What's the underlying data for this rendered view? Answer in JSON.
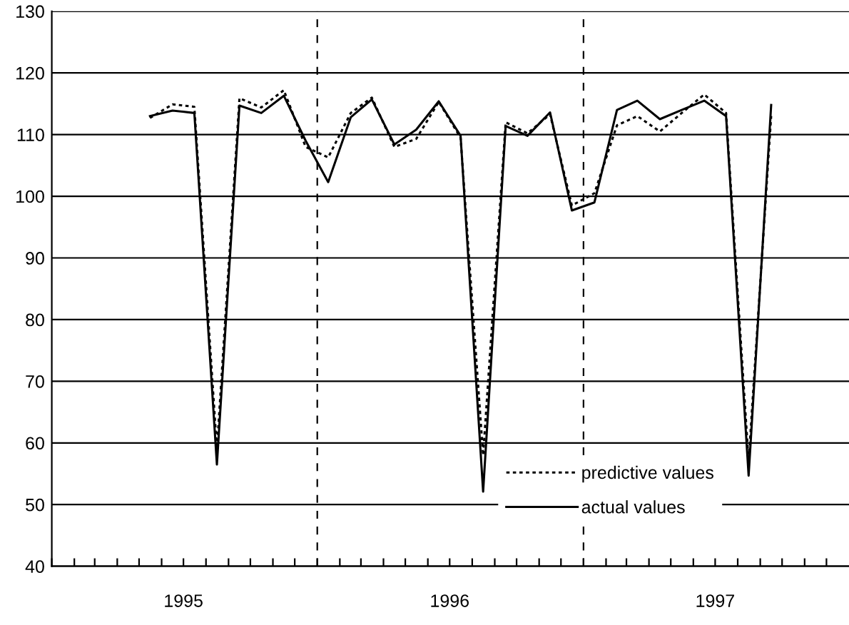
{
  "chart_data": {
    "type": "line",
    "x": [
      "1995-05-16",
      "1995-06-16",
      "1995-07-16",
      "1995-08-16",
      "1995-09-16",
      "1995-10-16",
      "1995-11-16",
      "1995-12-16",
      "1996-01-16",
      "1996-02-16",
      "1996-03-16",
      "1996-04-16",
      "1996-05-16",
      "1996-06-16",
      "1996-07-16",
      "1996-08-16",
      "1996-09-16",
      "1996-10-16",
      "1996-11-16",
      "1996-12-16",
      "1997-01-16",
      "1997-02-16",
      "1997-03-16",
      "1997-04-16",
      "1997-05-16",
      "1997-06-16",
      "1997-07-16",
      "1997-08-16",
      "1997-09-16"
    ],
    "series": [
      {
        "name": "predictive values",
        "color": "#000000",
        "line_style": "dotted",
        "values": [
          112.7,
          114.9,
          114.5,
          59,
          115.9,
          114.4,
          117.2,
          108,
          106.3,
          113.5,
          116,
          108,
          109.3,
          115.3,
          109.5,
          58,
          112,
          110.2,
          113.3,
          98.5,
          100.5,
          111.5,
          113,
          110.5,
          113.5,
          116.5,
          113.5,
          57,
          113
        ]
      },
      {
        "name": "actual values",
        "color": "#000000",
        "line_style": "solid",
        "values": [
          113,
          113.9,
          113.5,
          56.5,
          114.7,
          113.5,
          116.3,
          109,
          102.3,
          112.8,
          115.7,
          108.4,
          110.8,
          115.4,
          109.8,
          52.1,
          111.4,
          109.8,
          113.6,
          97.7,
          99,
          114,
          115.5,
          112.5,
          114,
          115.5,
          113,
          54.7,
          114.8
        ]
      }
    ],
    "xlim": [
      "1995-01-01",
      "1998-01-01"
    ],
    "xticks": [
      {
        "value": "1995-01-01",
        "label": null
      },
      {
        "value": "1995-02-01",
        "label": null
      },
      {
        "value": "1995-03-01",
        "label": null
      },
      {
        "value": "1995-04-01",
        "label": null
      },
      {
        "value": "1995-05-01",
        "label": null
      },
      {
        "value": "1995-06-01",
        "label": null
      },
      {
        "value": "1995-07-01",
        "label": "1995"
      },
      {
        "value": "1995-08-01",
        "label": null
      },
      {
        "value": "1995-09-01",
        "label": null
      },
      {
        "value": "1995-10-01",
        "label": null
      },
      {
        "value": "1995-11-01",
        "label": null
      },
      {
        "value": "1995-12-01",
        "label": null
      },
      {
        "value": "1996-01-01",
        "label": null
      },
      {
        "value": "1996-02-01",
        "label": null
      },
      {
        "value": "1996-03-01",
        "label": null
      },
      {
        "value": "1996-04-01",
        "label": null
      },
      {
        "value": "1996-05-01",
        "label": null
      },
      {
        "value": "1996-06-01",
        "label": null
      },
      {
        "value": "1996-07-01",
        "label": "1996"
      },
      {
        "value": "1996-08-01",
        "label": null
      },
      {
        "value": "1996-09-01",
        "label": null
      },
      {
        "value": "1996-10-01",
        "label": null
      },
      {
        "value": "1996-11-01",
        "label": null
      },
      {
        "value": "1996-12-01",
        "label": null
      },
      {
        "value": "1997-01-01",
        "label": null
      },
      {
        "value": "1997-02-01",
        "label": null
      },
      {
        "value": "1997-03-01",
        "label": null
      },
      {
        "value": "1997-04-01",
        "label": null
      },
      {
        "value": "1997-05-01",
        "label": null
      },
      {
        "value": "1997-06-01",
        "label": null
      },
      {
        "value": "1997-07-01",
        "label": "1997"
      },
      {
        "value": "1997-08-01",
        "label": null
      },
      {
        "value": "1997-09-01",
        "label": null
      },
      {
        "value": "1997-10-01",
        "label": null
      },
      {
        "value": "1997-11-01",
        "label": null
      },
      {
        "value": "1997-12-01",
        "label": null
      }
    ],
    "ylim": [
      40,
      130
    ],
    "yticks": [
      40,
      50,
      60,
      70,
      80,
      90,
      100,
      110,
      120,
      130
    ],
    "grid": "y",
    "legend": "bottom right",
    "marker": "none",
    "ref_lines": [
      {
        "axis": "x",
        "value": "1996-01-01",
        "color": "#000000",
        "line_style": "dashed"
      },
      {
        "axis": "x",
        "value": "1997-01-01",
        "color": "#000000",
        "line_style": "dashed"
      }
    ]
  }
}
